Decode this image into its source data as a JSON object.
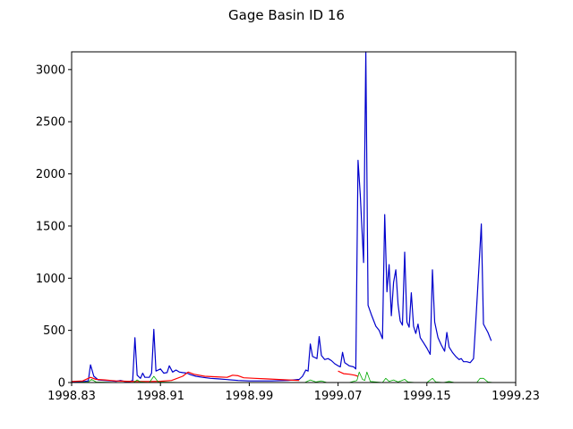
{
  "chart_data": {
    "type": "line",
    "title": "Gage Basin ID 16",
    "xlabel": "",
    "ylabel": "",
    "xlim": [
      1998.83,
      1999.23
    ],
    "ylim": [
      0,
      3170
    ],
    "x_ticks": [
      1998.83,
      1998.91,
      1998.99,
      1999.07,
      1999.15,
      1999.23
    ],
    "x_tick_labels": [
      "1998.83",
      "1998.91",
      "1998.99",
      "1999.07",
      "1999.15",
      "1999.23"
    ],
    "y_ticks": [
      0,
      500,
      1000,
      1500,
      2000,
      2500,
      3000
    ],
    "y_tick_labels": [
      "0",
      "500",
      "1000",
      "1500",
      "2000",
      "2500",
      "3000"
    ],
    "grid": false,
    "legend": "none",
    "series": [
      {
        "color": "#0000cc",
        "points": [
          [
            1998.83,
            5
          ],
          [
            1998.84,
            8
          ],
          [
            1998.845,
            15
          ],
          [
            1998.847,
            170
          ],
          [
            1998.85,
            60
          ],
          [
            1998.854,
            25
          ],
          [
            1998.86,
            20
          ],
          [
            1998.866,
            15
          ],
          [
            1998.87,
            12
          ],
          [
            1998.874,
            20
          ],
          [
            1998.878,
            10
          ],
          [
            1998.882,
            8
          ],
          [
            1998.885,
            20
          ],
          [
            1998.887,
            430
          ],
          [
            1998.889,
            70
          ],
          [
            1998.892,
            40
          ],
          [
            1998.894,
            90
          ],
          [
            1998.896,
            50
          ],
          [
            1998.9,
            50
          ],
          [
            1998.902,
            90
          ],
          [
            1998.904,
            510
          ],
          [
            1998.906,
            110
          ],
          [
            1998.91,
            130
          ],
          [
            1998.913,
            90
          ],
          [
            1998.916,
            95
          ],
          [
            1998.918,
            160
          ],
          [
            1998.921,
            100
          ],
          [
            1998.924,
            120
          ],
          [
            1998.927,
            100
          ],
          [
            1998.93,
            95
          ],
          [
            1998.934,
            90
          ],
          [
            1998.937,
            75
          ],
          [
            1998.942,
            60
          ],
          [
            1998.948,
            50
          ],
          [
            1998.955,
            40
          ],
          [
            1998.962,
            35
          ],
          [
            1998.97,
            28
          ],
          [
            1998.98,
            20
          ],
          [
            1998.99,
            15
          ],
          [
            1999.0,
            15
          ],
          [
            1999.01,
            15
          ],
          [
            1999.025,
            20
          ],
          [
            1999.035,
            30
          ],
          [
            1999.038,
            60
          ],
          [
            1999.041,
            120
          ],
          [
            1999.043,
            110
          ],
          [
            1999.045,
            370
          ],
          [
            1999.047,
            250
          ],
          [
            1999.049,
            240
          ],
          [
            1999.051,
            230
          ],
          [
            1999.053,
            440
          ],
          [
            1999.055,
            260
          ],
          [
            1999.058,
            220
          ],
          [
            1999.061,
            230
          ],
          [
            1999.064,
            210
          ],
          [
            1999.067,
            180
          ],
          [
            1999.07,
            160
          ],
          [
            1999.072,
            150
          ],
          [
            1999.074,
            290
          ],
          [
            1999.076,
            190
          ],
          [
            1999.08,
            160
          ],
          [
            1999.084,
            150
          ],
          [
            1999.086,
            130
          ],
          [
            1999.088,
            2130
          ],
          [
            1999.09,
            1800
          ],
          [
            1999.093,
            1150
          ],
          [
            1999.095,
            3170
          ],
          [
            1999.097,
            740
          ],
          [
            1999.1,
            650
          ],
          [
            1999.104,
            540
          ],
          [
            1999.107,
            500
          ],
          [
            1999.11,
            420
          ],
          [
            1999.112,
            1610
          ],
          [
            1999.114,
            870
          ],
          [
            1999.116,
            1130
          ],
          [
            1999.118,
            640
          ],
          [
            1999.12,
            960
          ],
          [
            1999.122,
            1080
          ],
          [
            1999.124,
            750
          ],
          [
            1999.126,
            590
          ],
          [
            1999.128,
            550
          ],
          [
            1999.13,
            1250
          ],
          [
            1999.132,
            580
          ],
          [
            1999.134,
            530
          ],
          [
            1999.136,
            860
          ],
          [
            1999.138,
            540
          ],
          [
            1999.14,
            470
          ],
          [
            1999.142,
            560
          ],
          [
            1999.144,
            430
          ],
          [
            1999.147,
            380
          ],
          [
            1999.15,
            330
          ],
          [
            1999.153,
            270
          ],
          [
            1999.155,
            1080
          ],
          [
            1999.157,
            580
          ],
          [
            1999.16,
            430
          ],
          [
            1999.163,
            360
          ],
          [
            1999.166,
            300
          ],
          [
            1999.168,
            480
          ],
          [
            1999.17,
            340
          ],
          [
            1999.173,
            290
          ],
          [
            1999.176,
            250
          ],
          [
            1999.179,
            220
          ],
          [
            1999.181,
            230
          ],
          [
            1999.183,
            200
          ],
          [
            1999.186,
            200
          ],
          [
            1999.189,
            190
          ],
          [
            1999.192,
            230
          ],
          [
            1999.194,
            580
          ],
          [
            1999.197,
            1130
          ],
          [
            1999.199,
            1520
          ],
          [
            1999.201,
            560
          ],
          [
            1999.205,
            480
          ],
          [
            1999.208,
            400
          ]
        ]
      },
      {
        "color": "#ff0000",
        "points": [
          [
            1998.83,
            10
          ],
          [
            1998.84,
            15
          ],
          [
            1998.847,
            50
          ],
          [
            1998.852,
            30
          ],
          [
            1998.86,
            25
          ],
          [
            1998.87,
            15
          ],
          [
            1998.88,
            12
          ],
          [
            1998.89,
            10
          ],
          [
            1998.9,
            10
          ],
          [
            1998.91,
            12
          ],
          [
            1998.92,
            20
          ],
          [
            1998.93,
            60
          ],
          [
            1998.935,
            100
          ],
          [
            1998.94,
            80
          ],
          [
            1998.95,
            60
          ],
          [
            1998.96,
            55
          ],
          [
            1998.97,
            50
          ],
          [
            1998.975,
            70
          ],
          [
            1998.98,
            65
          ],
          [
            1998.985,
            45
          ],
          [
            1998.995,
            40
          ],
          [
            1999.005,
            35
          ],
          [
            1999.015,
            30
          ],
          [
            1999.025,
            25
          ],
          [
            1999.035,
            20
          ]
        ]
      },
      {
        "color": "#ff0000",
        "points": [
          [
            1999.07,
            110
          ],
          [
            1999.075,
            85
          ],
          [
            1999.08,
            80
          ],
          [
            1999.085,
            70
          ],
          [
            1999.088,
            60
          ]
        ]
      },
      {
        "color": "#00aa00",
        "points": [
          [
            1998.83,
            0
          ],
          [
            1998.845,
            5
          ],
          [
            1998.848,
            30
          ],
          [
            1998.852,
            5
          ],
          [
            1998.87,
            0
          ],
          [
            1998.886,
            0
          ],
          [
            1998.889,
            25
          ],
          [
            1998.892,
            5
          ],
          [
            1998.9,
            0
          ],
          [
            1998.904,
            60
          ],
          [
            1998.908,
            5
          ],
          [
            1998.93,
            0
          ],
          [
            1999.04,
            0
          ],
          [
            1999.045,
            25
          ],
          [
            1999.05,
            5
          ],
          [
            1999.055,
            15
          ],
          [
            1999.06,
            0
          ],
          [
            1999.08,
            0
          ],
          [
            1999.087,
            20
          ],
          [
            1999.089,
            100
          ],
          [
            1999.092,
            30
          ],
          [
            1999.094,
            20
          ],
          [
            1999.096,
            100
          ],
          [
            1999.099,
            10
          ],
          [
            1999.11,
            0
          ],
          [
            1999.113,
            40
          ],
          [
            1999.116,
            10
          ],
          [
            1999.12,
            25
          ],
          [
            1999.124,
            5
          ],
          [
            1999.13,
            30
          ],
          [
            1999.133,
            5
          ],
          [
            1999.14,
            0
          ],
          [
            1999.15,
            0
          ],
          [
            1999.155,
            40
          ],
          [
            1999.158,
            5
          ],
          [
            1999.165,
            0
          ],
          [
            1999.17,
            10
          ],
          [
            1999.175,
            0
          ],
          [
            1999.195,
            0
          ],
          [
            1999.198,
            40
          ],
          [
            1999.201,
            40
          ],
          [
            1999.205,
            5
          ],
          [
            1999.21,
            0
          ]
        ]
      }
    ]
  }
}
